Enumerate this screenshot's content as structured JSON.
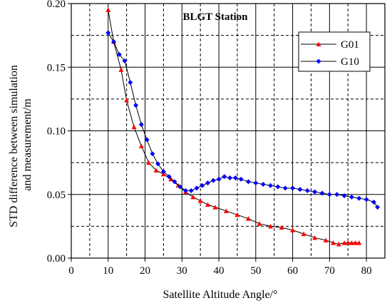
{
  "chart_data": {
    "type": "line",
    "title": "BLGT Station",
    "xlabel": "Satellite Altitude Angle/°",
    "ylabel_lines": [
      "STD difference between simulation",
      "and measurement/m"
    ],
    "xlim": [
      0,
      85
    ],
    "ylim": [
      0,
      0.2
    ],
    "xticks": [
      0,
      10,
      20,
      30,
      40,
      50,
      60,
      70,
      80
    ],
    "xtick_labels": [
      "0",
      "10",
      "20",
      "30",
      "40",
      "50",
      "60",
      "70",
      "80"
    ],
    "yticks": [
      0,
      0.05,
      0.1,
      0.15,
      0.2
    ],
    "ytick_labels": [
      "0.00",
      "0.05",
      "0.10",
      "0.15",
      "0.20"
    ],
    "grid": {
      "solid_x": [
        10,
        20,
        30,
        40,
        50,
        60,
        70,
        80
      ],
      "dashed_x": [
        5,
        15,
        25,
        35,
        45,
        55,
        65,
        75
      ],
      "solid_y": [
        0.05,
        0.1,
        0.15,
        0.2
      ],
      "dashed_y": [
        0.025,
        0.075,
        0.125,
        0.175
      ]
    },
    "legend_position": "top-right",
    "series": [
      {
        "name": "G01",
        "color": "#ff0000",
        "marker": "triangle",
        "x": [
          10,
          11.5,
          13.5,
          15,
          17,
          19,
          21,
          23,
          25,
          27,
          29,
          31,
          33,
          35,
          37,
          39,
          42,
          45,
          48,
          51,
          54,
          57,
          60,
          63,
          66,
          69,
          71,
          72.5,
          74,
          75,
          76,
          77,
          78
        ],
        "y": [
          0.195,
          0.17,
          0.148,
          0.124,
          0.103,
          0.088,
          0.075,
          0.069,
          0.066,
          0.062,
          0.057,
          0.052,
          0.048,
          0.045,
          0.042,
          0.04,
          0.037,
          0.034,
          0.031,
          0.027,
          0.025,
          0.024,
          0.022,
          0.019,
          0.016,
          0.014,
          0.012,
          0.011,
          0.012,
          0.012,
          0.012,
          0.012,
          0.012
        ]
      },
      {
        "name": "G10",
        "color": "#0000ff",
        "marker": "diamond",
        "x": [
          10,
          11.5,
          13,
          14.5,
          16,
          17.5,
          19,
          20.5,
          22,
          23.5,
          25,
          26.5,
          28,
          29.5,
          31,
          32.5,
          34,
          35.5,
          37,
          38.5,
          40,
          41.5,
          43,
          44.5,
          46,
          48,
          50,
          52,
          54,
          56,
          58,
          60,
          62,
          64,
          66,
          68,
          70,
          72,
          74,
          76,
          78,
          80,
          82,
          83
        ],
        "y": [
          0.177,
          0.17,
          0.16,
          0.155,
          0.138,
          0.12,
          0.105,
          0.093,
          0.082,
          0.074,
          0.068,
          0.064,
          0.06,
          0.056,
          0.053,
          0.053,
          0.055,
          0.057,
          0.059,
          0.061,
          0.062,
          0.064,
          0.063,
          0.063,
          0.062,
          0.06,
          0.059,
          0.058,
          0.057,
          0.056,
          0.055,
          0.055,
          0.054,
          0.053,
          0.052,
          0.051,
          0.05,
          0.05,
          0.049,
          0.048,
          0.047,
          0.046,
          0.044,
          0.04
        ]
      }
    ]
  }
}
